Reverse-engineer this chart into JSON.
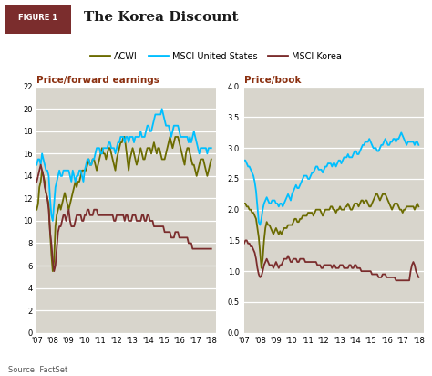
{
  "title": "The Korea Discount",
  "figure_label": "FIGURE 1",
  "source": "Source: FactSet",
  "legend": [
    "ACWI",
    "MSCI United States",
    "MSCI Korea"
  ],
  "colors": {
    "acwi": "#6B6B00",
    "msci_us": "#00BFFF",
    "msci_korea": "#7B2D2D"
  },
  "left_title": "Price/forward earnings",
  "right_title": "Price/book",
  "left_ylim": [
    0,
    22
  ],
  "right_ylim": [
    0.0,
    4.0
  ],
  "left_yticks": [
    0,
    2,
    4,
    6,
    8,
    10,
    12,
    14,
    16,
    18,
    20,
    22
  ],
  "right_yticks": [
    0.0,
    0.5,
    1.0,
    1.5,
    2.0,
    2.5,
    3.0,
    3.5,
    4.0
  ],
  "background_color": "#D8D5CC",
  "grid_color": "#FFFFFF",
  "title_bg_color": "#7B2D2D",
  "subplot_title_color": "#8B3010",
  "title_text_color": "#FFFFFF",
  "acwi_pe": [
    11.0,
    11.5,
    13.0,
    13.5,
    14.5,
    14.0,
    13.5,
    12.5,
    12.0,
    11.5,
    9.0,
    7.0,
    5.5,
    6.5,
    9.5,
    10.5,
    11.0,
    11.5,
    11.0,
    11.5,
    12.0,
    12.5,
    12.0,
    11.5,
    11.0,
    11.5,
    12.0,
    12.5,
    13.0,
    13.5,
    13.0,
    13.5,
    13.5,
    14.0,
    14.5,
    14.5,
    14.5,
    14.5,
    15.0,
    15.5,
    15.0,
    15.0,
    15.5,
    15.5,
    15.0,
    14.5,
    15.0,
    15.5,
    16.0,
    16.5,
    16.0,
    16.0,
    15.5,
    16.0,
    16.5,
    16.5,
    16.0,
    15.5,
    15.0,
    14.5,
    15.5,
    16.0,
    16.5,
    17.0,
    17.0,
    17.5,
    17.5,
    16.5,
    15.5,
    14.5,
    15.5,
    16.0,
    16.5,
    16.0,
    15.5,
    15.0,
    15.5,
    16.0,
    16.5,
    16.0,
    15.5,
    15.5,
    16.0,
    16.5,
    16.5,
    16.5,
    16.0,
    16.5,
    17.0,
    16.5,
    16.0,
    16.5,
    16.5,
    16.0,
    15.5,
    15.5,
    15.5,
    16.0,
    16.5,
    17.0,
    17.5,
    17.0,
    16.5,
    17.0,
    17.5,
    17.5,
    17.5,
    17.0,
    16.5,
    16.0,
    15.5,
    15.0,
    16.0,
    16.5,
    16.5,
    16.0,
    15.5,
    15.0,
    15.0,
    14.5,
    14.0,
    14.5,
    15.0,
    15.5,
    15.5,
    15.5,
    15.0,
    14.5,
    14.0,
    14.5,
    15.0,
    15.5
  ],
  "us_pe": [
    15.0,
    15.5,
    15.5,
    15.0,
    16.0,
    15.5,
    15.0,
    14.5,
    14.5,
    14.0,
    12.0,
    10.5,
    10.0,
    11.5,
    13.0,
    13.5,
    14.0,
    14.5,
    14.0,
    14.0,
    14.5,
    14.5,
    14.5,
    14.5,
    14.5,
    14.0,
    13.5,
    14.5,
    14.0,
    13.5,
    14.0,
    14.0,
    14.5,
    14.5,
    14.0,
    13.5,
    14.5,
    15.0,
    15.5,
    15.5,
    15.0,
    15.0,
    15.5,
    15.5,
    16.0,
    16.5,
    16.5,
    16.5,
    16.0,
    16.0,
    16.5,
    16.5,
    16.5,
    16.5,
    17.0,
    17.0,
    16.5,
    16.5,
    16.5,
    16.0,
    16.5,
    17.0,
    17.0,
    17.5,
    17.5,
    17.5,
    17.0,
    17.5,
    17.5,
    17.0,
    17.5,
    17.5,
    17.5,
    17.0,
    17.5,
    17.5,
    17.5,
    17.5,
    18.0,
    17.5,
    17.5,
    17.5,
    18.0,
    18.5,
    18.5,
    18.0,
    18.0,
    18.5,
    19.0,
    19.5,
    19.5,
    19.5,
    19.5,
    19.5,
    20.0,
    19.5,
    19.0,
    18.5,
    18.5,
    18.5,
    18.0,
    17.5,
    18.0,
    18.5,
    18.5,
    18.5,
    18.5,
    18.0,
    17.5,
    17.5,
    17.5,
    17.5,
    17.5,
    17.5,
    17.0,
    17.5,
    17.0,
    17.5,
    18.0,
    17.5,
    17.0,
    16.5,
    16.0,
    16.5,
    16.5,
    16.5,
    16.5,
    16.5,
    16.0,
    16.5,
    16.5,
    16.5
  ],
  "korea_pe": [
    13.5,
    14.0,
    14.5,
    15.0,
    14.5,
    14.0,
    13.0,
    12.5,
    12.0,
    11.0,
    9.0,
    8.0,
    6.5,
    5.5,
    6.0,
    7.5,
    9.0,
    9.5,
    9.5,
    10.0,
    10.5,
    10.5,
    10.0,
    10.5,
    11.0,
    10.0,
    9.5,
    9.5,
    9.5,
    10.0,
    10.5,
    10.5,
    10.5,
    10.5,
    10.0,
    10.0,
    10.5,
    10.5,
    11.0,
    11.0,
    10.5,
    10.5,
    10.5,
    11.0,
    11.0,
    11.0,
    10.5,
    10.5,
    10.5,
    10.5,
    10.5,
    10.5,
    10.5,
    10.5,
    10.5,
    10.5,
    10.5,
    10.5,
    10.0,
    10.0,
    10.5,
    10.5,
    10.5,
    10.5,
    10.5,
    10.5,
    10.0,
    10.5,
    10.5,
    10.0,
    10.0,
    10.0,
    10.5,
    10.5,
    10.5,
    10.0,
    10.0,
    10.0,
    10.0,
    10.5,
    10.5,
    10.0,
    10.0,
    10.5,
    10.5,
    10.0,
    10.0,
    10.0,
    9.5,
    9.5,
    9.5,
    9.5,
    9.5,
    9.5,
    9.5,
    9.5,
    9.0,
    9.0,
    9.0,
    9.0,
    9.0,
    8.5,
    8.5,
    8.5,
    9.0,
    9.0,
    9.0,
    8.5,
    8.5,
    8.5,
    8.5,
    8.5,
    8.5,
    8.5,
    8.0,
    8.0,
    8.0,
    7.5,
    7.5,
    7.5,
    7.5,
    7.5,
    7.5,
    7.5,
    7.5,
    7.5,
    7.5,
    7.5,
    7.5,
    7.5,
    7.5,
    7.5
  ],
  "acwi_pb": [
    2.1,
    2.1,
    2.05,
    2.05,
    2.0,
    2.0,
    1.95,
    1.95,
    1.9,
    1.85,
    1.7,
    1.55,
    1.3,
    1.05,
    1.2,
    1.5,
    1.7,
    1.8,
    1.75,
    1.75,
    1.7,
    1.65,
    1.6,
    1.65,
    1.7,
    1.65,
    1.6,
    1.65,
    1.6,
    1.65,
    1.7,
    1.7,
    1.7,
    1.75,
    1.75,
    1.75,
    1.75,
    1.8,
    1.85,
    1.85,
    1.8,
    1.8,
    1.85,
    1.85,
    1.9,
    1.9,
    1.9,
    1.9,
    1.95,
    1.95,
    1.95,
    1.95,
    1.9,
    1.95,
    2.0,
    2.0,
    2.0,
    2.0,
    1.95,
    1.9,
    1.95,
    2.0,
    2.0,
    2.0,
    2.0,
    2.05,
    2.05,
    2.0,
    2.0,
    1.95,
    2.0,
    2.0,
    2.05,
    2.0,
    2.0,
    2.0,
    2.05,
    2.05,
    2.1,
    2.05,
    2.0,
    2.0,
    2.05,
    2.1,
    2.1,
    2.1,
    2.05,
    2.1,
    2.15,
    2.15,
    2.1,
    2.15,
    2.15,
    2.1,
    2.05,
    2.05,
    2.1,
    2.15,
    2.2,
    2.25,
    2.25,
    2.2,
    2.15,
    2.2,
    2.25,
    2.25,
    2.25,
    2.2,
    2.15,
    2.1,
    2.05,
    2.0,
    2.05,
    2.1,
    2.1,
    2.1,
    2.05,
    2.0,
    2.0,
    1.95,
    2.0,
    2.0,
    2.05,
    2.05,
    2.05,
    2.05,
    2.05,
    2.05,
    2.0,
    2.05,
    2.1,
    2.05
  ],
  "us_pb": [
    2.8,
    2.8,
    2.75,
    2.7,
    2.7,
    2.65,
    2.6,
    2.55,
    2.45,
    2.3,
    2.05,
    1.8,
    1.75,
    1.85,
    2.0,
    2.1,
    2.15,
    2.2,
    2.15,
    2.1,
    2.1,
    2.15,
    2.15,
    2.15,
    2.1,
    2.1,
    2.05,
    2.1,
    2.1,
    2.05,
    2.1,
    2.15,
    2.2,
    2.25,
    2.2,
    2.15,
    2.25,
    2.3,
    2.35,
    2.4,
    2.35,
    2.35,
    2.4,
    2.45,
    2.5,
    2.55,
    2.55,
    2.55,
    2.5,
    2.5,
    2.55,
    2.6,
    2.6,
    2.65,
    2.7,
    2.7,
    2.65,
    2.65,
    2.65,
    2.6,
    2.65,
    2.7,
    2.7,
    2.75,
    2.75,
    2.75,
    2.7,
    2.75,
    2.75,
    2.7,
    2.75,
    2.8,
    2.8,
    2.75,
    2.8,
    2.85,
    2.85,
    2.85,
    2.9,
    2.85,
    2.85,
    2.85,
    2.9,
    2.95,
    2.95,
    2.9,
    2.9,
    2.95,
    3.0,
    3.05,
    3.05,
    3.1,
    3.1,
    3.1,
    3.15,
    3.1,
    3.05,
    3.0,
    3.0,
    3.0,
    2.95,
    2.95,
    3.0,
    3.05,
    3.05,
    3.1,
    3.15,
    3.1,
    3.05,
    3.05,
    3.1,
    3.1,
    3.15,
    3.15,
    3.1,
    3.15,
    3.15,
    3.2,
    3.25,
    3.2,
    3.15,
    3.1,
    3.05,
    3.1,
    3.1,
    3.1,
    3.1,
    3.1,
    3.05,
    3.1,
    3.1,
    3.05
  ],
  "korea_pb": [
    1.45,
    1.5,
    1.5,
    1.45,
    1.45,
    1.4,
    1.4,
    1.35,
    1.3,
    1.2,
    1.05,
    0.95,
    0.9,
    0.92,
    1.0,
    1.1,
    1.15,
    1.2,
    1.15,
    1.1,
    1.1,
    1.1,
    1.05,
    1.1,
    1.15,
    1.1,
    1.05,
    1.1,
    1.1,
    1.15,
    1.2,
    1.2,
    1.2,
    1.25,
    1.2,
    1.15,
    1.15,
    1.2,
    1.2,
    1.2,
    1.15,
    1.15,
    1.2,
    1.2,
    1.2,
    1.2,
    1.15,
    1.15,
    1.15,
    1.15,
    1.15,
    1.15,
    1.15,
    1.15,
    1.15,
    1.1,
    1.1,
    1.1,
    1.05,
    1.05,
    1.1,
    1.1,
    1.1,
    1.1,
    1.1,
    1.1,
    1.05,
    1.1,
    1.1,
    1.05,
    1.05,
    1.05,
    1.1,
    1.1,
    1.1,
    1.05,
    1.05,
    1.05,
    1.05,
    1.1,
    1.1,
    1.05,
    1.05,
    1.1,
    1.1,
    1.05,
    1.05,
    1.05,
    1.0,
    1.0,
    1.0,
    1.0,
    1.0,
    1.0,
    1.0,
    1.0,
    0.95,
    0.95,
    0.95,
    0.95,
    0.95,
    0.9,
    0.9,
    0.9,
    0.95,
    0.95,
    0.95,
    0.9,
    0.9,
    0.9,
    0.9,
    0.9,
    0.9,
    0.9,
    0.85,
    0.85,
    0.85,
    0.85,
    0.85,
    0.85,
    0.85,
    0.85,
    0.85,
    0.85,
    0.85,
    1.0,
    1.1,
    1.15,
    1.1,
    1.0,
    0.95,
    0.9
  ]
}
